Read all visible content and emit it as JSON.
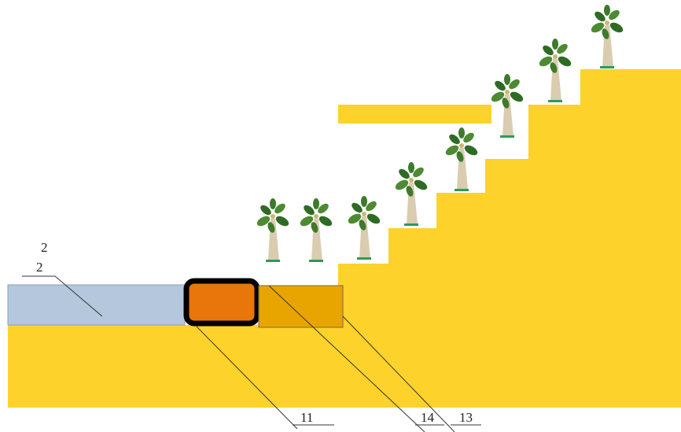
{
  "labels": [
    "2",
    "2",
    "11",
    "14",
    "13"
  ]
}
